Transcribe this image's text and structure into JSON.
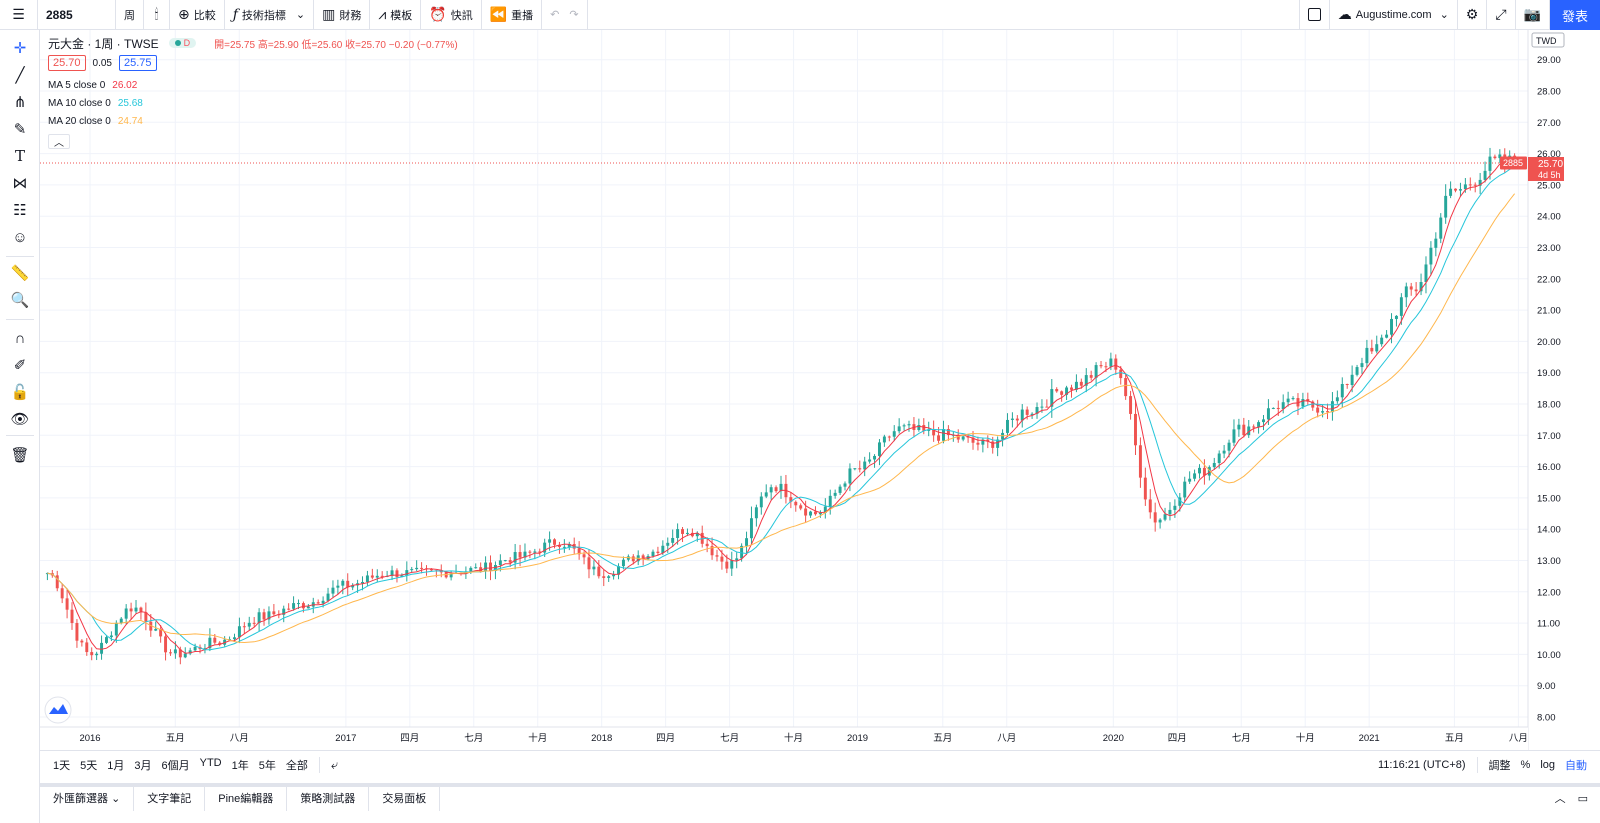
{
  "toolbar": {
    "symbol": "2885",
    "interval": "周",
    "compare": "比較",
    "indicators": "技術指標",
    "financials": "財務",
    "templates": "模板",
    "news": "快訊",
    "replay": "重播",
    "account": "Augustime.com",
    "publish": "發表"
  },
  "legend": {
    "title": "元大金 · 1周 · TWSE",
    "badge": "D",
    "ohlc": "開=25.75 高=25.90 低=25.60 收=25.70 −0.20 (−0.77%)",
    "bid": "25.70",
    "spread": "0.05",
    "ask": "25.75",
    "ma": [
      {
        "label": "MA 5 close 0",
        "value": "26.02",
        "color": "#f23645"
      },
      {
        "label": "MA 10 close 0",
        "value": "25.68",
        "color": "#26c6da"
      },
      {
        "label": "MA 20 close 0",
        "value": "24.74",
        "color": "#ffb74d"
      }
    ]
  },
  "price_axis": {
    "currency": "TWD",
    "labels": [
      "29.00",
      "28.00",
      "27.00",
      "26.00",
      "25.00",
      "24.00",
      "23.00",
      "22.00",
      "21.00",
      "20.00",
      "19.00",
      "18.00",
      "17.00",
      "16.00",
      "15.00",
      "14.00",
      "13.00",
      "12.00",
      "11.00",
      "10.00",
      "9.00",
      "8.00"
    ],
    "last_symbol": "2885",
    "last_price": "25.70",
    "countdown": "4d 5h"
  },
  "time_axis": {
    "labels": [
      "2016",
      "五月",
      "八月",
      "2017",
      "四月",
      "七月",
      "十月",
      "2018",
      "四月",
      "七月",
      "十月",
      "2019",
      "五月",
      "八月",
      "2020",
      "四月",
      "七月",
      "十月",
      "2021",
      "五月",
      "八月"
    ]
  },
  "bottom": {
    "ranges": [
      "1天",
      "5天",
      "1月",
      "3月",
      "6個月",
      "YTD",
      "1年",
      "5年",
      "全部"
    ],
    "clock": "11:16:21 (UTC+8)",
    "adjust": "調整",
    "percent": "%",
    "log": "log",
    "auto": "自動"
  },
  "panels": [
    "外匯篩選器",
    "文字筆記",
    "Pine編輯器",
    "策略測試器",
    "交易面板"
  ],
  "chart_data": {
    "type": "candlestick",
    "symbol": "2885",
    "ylim": [
      8,
      29
    ],
    "grid": true,
    "colors": {
      "up": "#26a69a",
      "down": "#ef5350",
      "ma5": "#f23645",
      "ma10": "#26c6da",
      "ma20": "#ffb74d"
    },
    "x": [
      "2015-11",
      "2016-01",
      "2016-03",
      "2016-05",
      "2016-07",
      "2016-09",
      "2016-11",
      "2017-01",
      "2017-03",
      "2017-05",
      "2017-07",
      "2017-09",
      "2017-11",
      "2018-01",
      "2018-03",
      "2018-05",
      "2018-07",
      "2018-09",
      "2018-11",
      "2019-01",
      "2019-03",
      "2019-05",
      "2019-07",
      "2019-09",
      "2019-11",
      "2020-01",
      "2020-03",
      "2020-05",
      "2020-07",
      "2020-09",
      "2020-11",
      "2021-01",
      "2021-03",
      "2021-05",
      "2021-07"
    ],
    "close": [
      12.6,
      10.0,
      11.5,
      10.0,
      10.4,
      11.2,
      11.6,
      12.2,
      12.6,
      12.6,
      12.7,
      13.1,
      13.6,
      12.6,
      13.2,
      14.0,
      12.9,
      15.4,
      14.5,
      15.9,
      17.2,
      17.0,
      16.7,
      17.8,
      18.6,
      19.3,
      14.3,
      15.8,
      17.2,
      18.0,
      17.9,
      19.6,
      21.6,
      24.8,
      25.7
    ]
  }
}
